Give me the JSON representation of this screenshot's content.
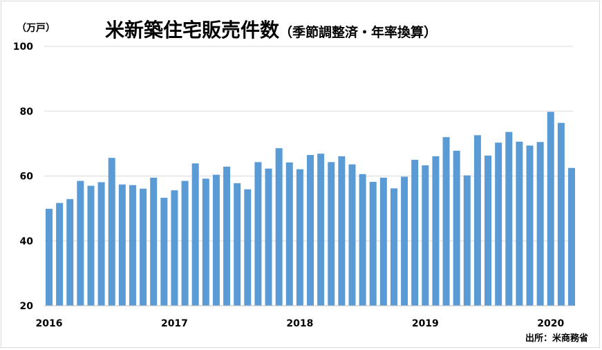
{
  "chart_data": {
    "type": "bar",
    "title": "米新築住宅販売件数",
    "subtitle": "（季節調整済・年率換算）",
    "ylabel": "（万戸）",
    "source": "出所：米商務省",
    "ylim": [
      20,
      100
    ],
    "yticks": [
      "20",
      "40",
      "60",
      "80",
      "100"
    ],
    "xticks": [
      "2016",
      "2017",
      "2018",
      "2019",
      "2020"
    ],
    "grid": true,
    "bar_color": "#5b9bd5",
    "categories": [
      "2016-01",
      "2016-02",
      "2016-03",
      "2016-04",
      "2016-05",
      "2016-06",
      "2016-07",
      "2016-08",
      "2016-09",
      "2016-10",
      "2016-11",
      "2016-12",
      "2017-01",
      "2017-02",
      "2017-03",
      "2017-04",
      "2017-05",
      "2017-06",
      "2017-07",
      "2017-08",
      "2017-09",
      "2017-10",
      "2017-11",
      "2017-12",
      "2018-01",
      "2018-02",
      "2018-03",
      "2018-04",
      "2018-05",
      "2018-06",
      "2018-07",
      "2018-08",
      "2018-09",
      "2018-10",
      "2018-11",
      "2018-12",
      "2019-01",
      "2019-02",
      "2019-03",
      "2019-04",
      "2019-05",
      "2019-06",
      "2019-07",
      "2019-08",
      "2019-09",
      "2019-10",
      "2019-11",
      "2019-12",
      "2020-01",
      "2020-02",
      "2020-03"
    ],
    "values": [
      49.9,
      51.7,
      52.9,
      58.5,
      57.0,
      58.1,
      65.6,
      57.4,
      57.2,
      56.1,
      59.5,
      53.3,
      55.6,
      58.5,
      63.9,
      59.2,
      60.4,
      62.9,
      57.8,
      55.9,
      64.3,
      62.3,
      68.6,
      64.2,
      62.1,
      66.5,
      66.9,
      64.3,
      66.1,
      63.6,
      60.6,
      58.2,
      59.5,
      56.2,
      59.8,
      65.0,
      63.3,
      66.1,
      72.0,
      67.8,
      60.2,
      72.6,
      66.3,
      70.3,
      73.6,
      70.6,
      69.4,
      70.5,
      79.8,
      76.4,
      62.5
    ]
  }
}
